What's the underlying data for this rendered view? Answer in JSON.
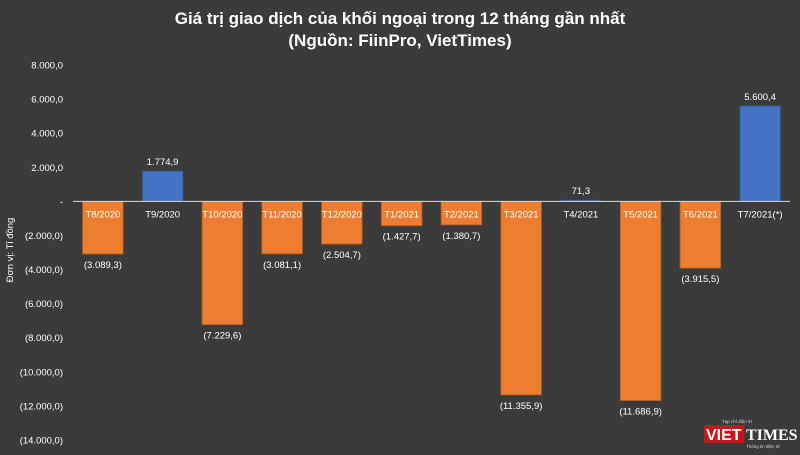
{
  "chart_data": {
    "type": "bar",
    "title": "Giá trị giao dịch của khối ngoại trong 12 tháng gần nhất",
    "subtitle": "(Nguồn: FiinPro, VietTimes)",
    "ylabel": "Đơn vị: Tỉ đồng",
    "ylim": [
      -14000,
      8000
    ],
    "yticks": [
      8000,
      6000,
      4000,
      2000,
      0,
      -2000,
      -4000,
      -6000,
      -8000,
      -10000,
      -12000,
      -14000
    ],
    "ytick_labels": [
      "8.000,0",
      "6.000,0",
      "4.000,0",
      "2.000,0",
      "-",
      "(2.000,0)",
      "(4.000,0)",
      "(6.000,0)",
      "(8.000,0)",
      "(10.000,0)",
      "(12.000,0)",
      "(14.000,0)"
    ],
    "categories": [
      "T8/2020",
      "T9/2020",
      "T10/2020",
      "T11/2020",
      "T12/2020",
      "T1/2021",
      "T2/2021",
      "T3/2021",
      "T4/2021",
      "T5/2021",
      "T6/2021",
      "T7/2021(*)"
    ],
    "values": [
      -3089.3,
      1774.9,
      -7229.6,
      -3081.1,
      -2504.7,
      -1427.7,
      -1380.7,
      -11355.9,
      71.3,
      -11686.9,
      -3915.5,
      5600.4
    ],
    "value_labels": [
      "(3.089,3)",
      "1.774,9",
      "(7.229,6)",
      "(3.081,1)",
      "(2.504,7)",
      "(1.427,7)",
      "(1.380,7)",
      "(11.355,9)",
      "71,3",
      "(11.686,9)",
      "(3.915,5)",
      "5.600,4"
    ],
    "grid": false,
    "colors": {
      "positive": "#4472c4",
      "negative": "#ed7d31",
      "background": "#3b3b3b",
      "axis": "#d9d9d9",
      "text": "#ffffff"
    }
  },
  "logo": {
    "tagline": "Tạp chí điện tử",
    "brand_left": "VIET",
    "brand_right": "TIMES",
    "slogan": "Thông tin điện tử"
  }
}
